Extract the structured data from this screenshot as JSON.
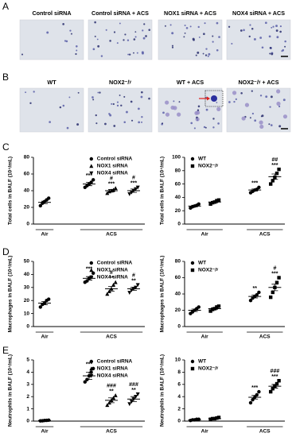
{
  "panel_labels": [
    "A",
    "B",
    "C",
    "D",
    "E"
  ],
  "image_rows": [
    {
      "titles": [
        "Control siRNA",
        "Control siRNA + ACS",
        "NOX1 siRNA + ACS",
        "NOX4 siRNA + ACS"
      ]
    },
    {
      "titles": [
        "WT",
        "NOX2⁻/ʸ",
        "WT + ACS",
        "NOX2⁻/ʸ + ACS"
      ]
    }
  ],
  "chart_data": [
    {
      "type": "dot",
      "y_label": "Total cells in BALF (10⁴/mL)",
      "categories": [
        "Air",
        "ACS"
      ],
      "ylim": [
        0,
        80
      ],
      "yticks": [
        0,
        20,
        40,
        60,
        80
      ],
      "legend": "upper right",
      "series": [
        {
          "name": "Control siRNA",
          "marker": "circle",
          "color": "#000000",
          "values": [
            [
              22,
              25,
              27,
              29,
              31
            ],
            [
              44,
              46,
              48,
              50,
              53
            ]
          ],
          "means": [
            26,
            48
          ],
          "errors": [
            1.5,
            2
          ],
          "labels": [
            null,
            [
              "***"
            ]
          ]
        },
        {
          "name": "NOX1 siRNA",
          "marker": "triangle",
          "color": "#000000",
          "values": [
            null,
            [
              37,
              39,
              40,
              41,
              43
            ]
          ],
          "means": [
            null,
            40
          ],
          "errors": [
            null,
            1.5
          ],
          "labels": [
            null,
            [
              "#",
              "***"
            ]
          ]
        },
        {
          "name": "NOX4 siRNA",
          "marker": "triangle-down",
          "color": "#000000",
          "values": [
            null,
            [
              36,
              38,
              40,
              42,
              44
            ]
          ],
          "means": [
            null,
            40
          ],
          "errors": [
            null,
            2
          ],
          "labels": [
            null,
            [
              "#",
              "***"
            ]
          ]
        }
      ]
    },
    {
      "type": "dot",
      "y_label": "Total cells in BALF (10⁴/mL)",
      "categories": [
        "Air",
        "ACS"
      ],
      "ylim": [
        0,
        100
      ],
      "yticks": [
        0,
        20,
        40,
        60,
        80,
        100
      ],
      "legend": "upper left",
      "series": [
        {
          "name": "WT",
          "marker": "circle",
          "color": "#000000",
          "values": [
            [
              24,
              26,
              27,
              28,
              30
            ],
            [
              47,
              49,
              51,
              52,
              55
            ]
          ],
          "means": [
            27,
            51
          ],
          "errors": [
            1.2,
            1.5
          ],
          "labels": [
            null,
            [
              "***"
            ]
          ]
        },
        {
          "name": "NOX2⁻/ʸ",
          "marker": "square",
          "color": "#000000",
          "values": [
            [
              30,
              32,
              33,
              35,
              36
            ],
            [
              60,
              65,
              70,
              76,
              82
            ]
          ],
          "means": [
            33,
            71
          ],
          "errors": [
            1.2,
            4
          ],
          "labels": [
            null,
            [
              "##",
              "***"
            ]
          ]
        }
      ]
    },
    {
      "type": "dot",
      "y_label": "Macrophages in BALF (10⁴/mL)",
      "categories": [
        "Air",
        "ACS"
      ],
      "ylim": [
        0,
        50
      ],
      "yticks": [
        0,
        10,
        20,
        30,
        40,
        50
      ],
      "legend": "upper right",
      "series": [
        {
          "name": "Control siRNA",
          "marker": "circle",
          "color": "#000000",
          "values": [
            [
              15,
              17,
              18,
              20,
              21
            ],
            [
              34,
              35,
              37,
              38,
              41
            ]
          ],
          "means": [
            18,
            37
          ],
          "errors": [
            1.2,
            1.3
          ],
          "labels": [
            null,
            [
              "***"
            ]
          ]
        },
        {
          "name": "NOX1 siRNA",
          "marker": "triangle",
          "color": "#000000",
          "values": [
            null,
            [
              25,
              27,
              29,
              32,
              34
            ]
          ],
          "means": [
            null,
            29
          ],
          "errors": [
            null,
            1.8
          ],
          "labels": [
            null,
            [
              "#",
              "**"
            ]
          ]
        },
        {
          "name": "NOX4 siRNA",
          "marker": "triangle-down",
          "color": "#000000",
          "values": [
            null,
            [
              26,
              28,
              29,
              30,
              32
            ]
          ],
          "means": [
            null,
            29
          ],
          "errors": [
            null,
            1.2
          ],
          "labels": [
            null,
            [
              "#",
              "**"
            ]
          ]
        }
      ]
    },
    {
      "type": "dot",
      "y_label": "Macrophages in BALF (10⁴/mL)",
      "categories": [
        "Air",
        "ACS"
      ],
      "ylim": [
        0,
        80
      ],
      "yticks": [
        0,
        20,
        40,
        60,
        80
      ],
      "legend": "upper left",
      "series": [
        {
          "name": "WT",
          "marker": "circle",
          "color": "#000000",
          "values": [
            [
              16,
              18,
              20,
              22,
              24
            ],
            [
              32,
              35,
              37,
              39,
              42
            ]
          ],
          "means": [
            20,
            37
          ],
          "errors": [
            1.5,
            1.8
          ],
          "labels": [
            null,
            [
              "**"
            ]
          ]
        },
        {
          "name": "NOX2⁻/ʸ",
          "marker": "square",
          "color": "#000000",
          "values": [
            [
              19,
              21,
              22,
              24,
              25
            ],
            [
              36,
              42,
              48,
              54,
              60
            ]
          ],
          "means": [
            22,
            48
          ],
          "errors": [
            1.2,
            4
          ],
          "labels": [
            null,
            [
              "#",
              "***"
            ]
          ]
        }
      ]
    },
    {
      "type": "dot",
      "y_label": "Neutrophils in BALF (10⁴/mL)",
      "categories": [
        "Air",
        "ACS"
      ],
      "ylim": [
        0,
        5
      ],
      "yticks": [
        0,
        1,
        2,
        3,
        4,
        5
      ],
      "legend": "upper right",
      "series": [
        {
          "name": "Control siRNA",
          "marker": "circle",
          "color": "#000000",
          "values": [
            [
              0.02,
              0.03,
              0.05,
              0.06,
              0.08
            ],
            [
              3.2,
              3.4,
              3.7,
              4.0,
              4.3
            ]
          ],
          "means": [
            0.05,
            3.7
          ],
          "errors": [
            0.01,
            0.3
          ],
          "labels": [
            null,
            [
              "***"
            ]
          ]
        },
        {
          "name": "NOX1 siRNA",
          "marker": "triangle",
          "color": "#000000",
          "values": [
            null,
            [
              1.3,
              1.5,
              1.7,
              1.9,
              2.1
            ]
          ],
          "means": [
            null,
            1.7
          ],
          "errors": [
            null,
            0.2
          ],
          "labels": [
            null,
            [
              "###",
              "**"
            ]
          ]
        },
        {
          "name": "NOX4 siRNA",
          "marker": "triangle-down",
          "color": "#000000",
          "values": [
            null,
            [
              1.4,
              1.6,
              1.8,
              2.0,
              2.2
            ]
          ],
          "means": [
            null,
            1.8
          ],
          "errors": [
            null,
            0.2
          ],
          "labels": [
            null,
            [
              "###",
              "**"
            ]
          ]
        }
      ]
    },
    {
      "type": "dot",
      "y_label": "Neutrophils in BALF (10⁴/mL)",
      "categories": [
        "Air",
        "ACS"
      ],
      "ylim": [
        0,
        10
      ],
      "yticks": [
        0,
        2,
        4,
        6,
        8,
        10
      ],
      "legend": "upper left",
      "series": [
        {
          "name": "WT",
          "marker": "circle",
          "color": "#000000",
          "values": [
            [
              0.1,
              0.2,
              0.2,
              0.3,
              0.3
            ],
            [
              3.0,
              3.5,
              3.9,
              4.3,
              4.8
            ]
          ],
          "means": [
            0.2,
            3.9
          ],
          "errors": [
            0.05,
            0.3
          ],
          "labels": [
            null,
            [
              "***"
            ]
          ]
        },
        {
          "name": "NOX2⁻/ʸ",
          "marker": "square",
          "color": "#000000",
          "values": [
            [
              0.3,
              0.4,
              0.4,
              0.5,
              0.6
            ],
            [
              4.8,
              5.3,
              5.7,
              6.1,
              6.6
            ]
          ],
          "means": [
            0.4,
            5.7
          ],
          "errors": [
            0.06,
            0.3
          ],
          "labels": [
            null,
            [
              "###",
              "***"
            ]
          ]
        }
      ]
    }
  ]
}
